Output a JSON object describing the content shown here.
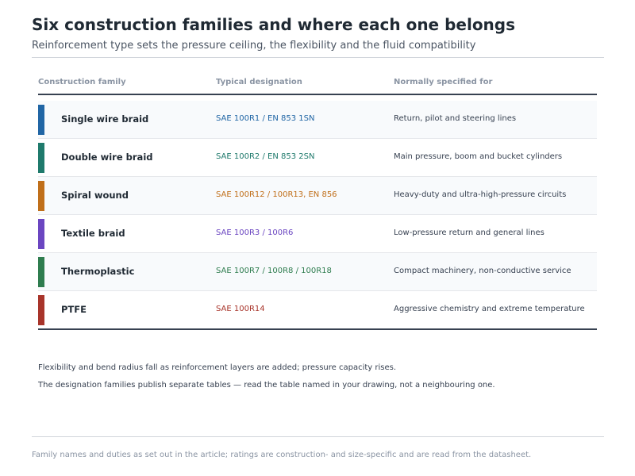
{
  "header": {
    "title": "Six construction families and where each one belongs",
    "subtitle": "Reinforcement type sets the pressure ceiling, the flexibility and the fluid compatibility"
  },
  "table": {
    "columns": [
      "Construction family",
      "Typical designation",
      "Normally specified for"
    ],
    "rows": [
      {
        "family": "Single wire braid",
        "designation": "SAE 100R1 / EN 853 1SN",
        "use": "Return, pilot and steering lines",
        "color": "#2166a5"
      },
      {
        "family": "Double wire braid",
        "designation": "SAE 100R2 / EN 853 2SN",
        "use": "Main pressure, boom and bucket cylinders",
        "color": "#1f7a6c"
      },
      {
        "family": "Spiral wound",
        "designation": "SAE 100R12 / 100R13, EN 856",
        "use": "Heavy-duty and ultra-high-pressure circuits",
        "color": "#c06f1a"
      },
      {
        "family": "Textile braid",
        "designation": "SAE 100R3 / 100R6",
        "use": "Low-pressure return and general lines",
        "color": "#6b46c1"
      },
      {
        "family": "Thermoplastic",
        "designation": "SAE 100R7 / 100R8 / 100R18",
        "use": "Compact machinery, non-conductive service",
        "color": "#2f7d4f"
      },
      {
        "family": "PTFE",
        "designation": "SAE 100R14",
        "use": "Aggressive chemistry and extreme temperature",
        "color": "#a8342a"
      }
    ]
  },
  "notes": [
    "Flexibility and bend radius fall as reinforcement layers are added; pressure capacity rises.",
    "The designation families publish separate tables — read the table named in your drawing, not a neighbouring one."
  ],
  "footer": "Family names and duties as set out in the article; ratings are construction- and size-specific and are read from the datasheet."
}
